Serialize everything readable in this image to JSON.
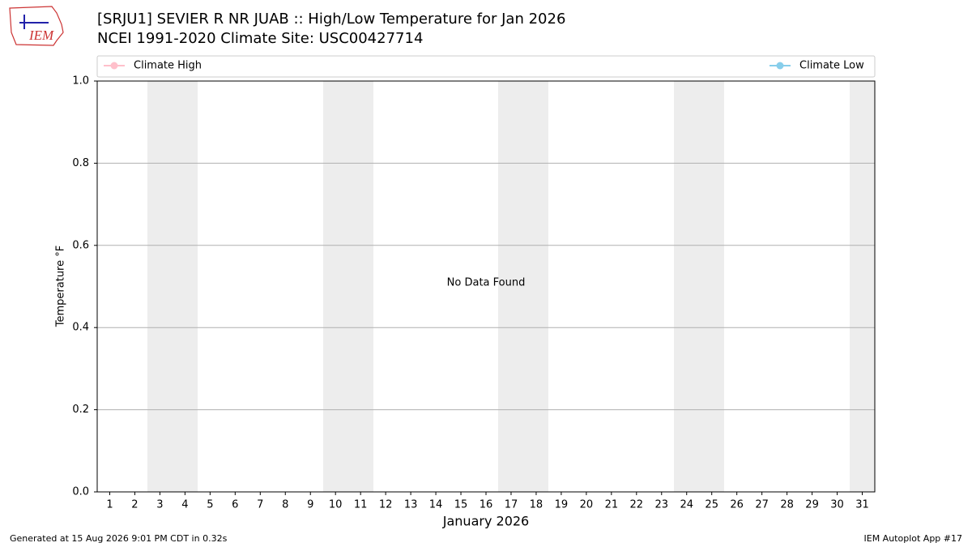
{
  "logo_text": "IEM",
  "footer_left": "Generated at 15 Aug 2026 9:01 PM CDT in 0.32s",
  "footer_right": "IEM Autoplot App #17",
  "chart_data": {
    "type": "line",
    "title": "[SRJU1] SEVIER R NR JUAB :: High/Low Temperature for Jan 2026",
    "subtitle": "NCEI 1991-2020 Climate Site: USC00427714",
    "ylabel": "Temperature °F",
    "xlabel": "January 2026",
    "annotation": "No Data Found",
    "xlim": [
      0.5,
      31.5
    ],
    "xticks": [
      1,
      2,
      3,
      4,
      5,
      6,
      7,
      8,
      9,
      10,
      11,
      12,
      13,
      14,
      15,
      16,
      17,
      18,
      19,
      20,
      21,
      22,
      23,
      24,
      25,
      26,
      27,
      28,
      29,
      30,
      31
    ],
    "ylim": [
      0,
      1
    ],
    "yticks": [
      {
        "value": 0,
        "label": "0.0"
      },
      {
        "value": 0.2,
        "label": "0.2"
      },
      {
        "value": 0.4,
        "label": "0.4"
      },
      {
        "value": 0.6,
        "label": "0.6"
      },
      {
        "value": 0.8,
        "label": "0.8"
      },
      {
        "value": 1,
        "label": "1.0"
      }
    ],
    "grid": true,
    "series": [
      {
        "name": "Climate High",
        "color": "#ffc0cb",
        "values": []
      },
      {
        "name": "Climate Low",
        "color": "#87ceeb",
        "values": []
      }
    ]
  }
}
